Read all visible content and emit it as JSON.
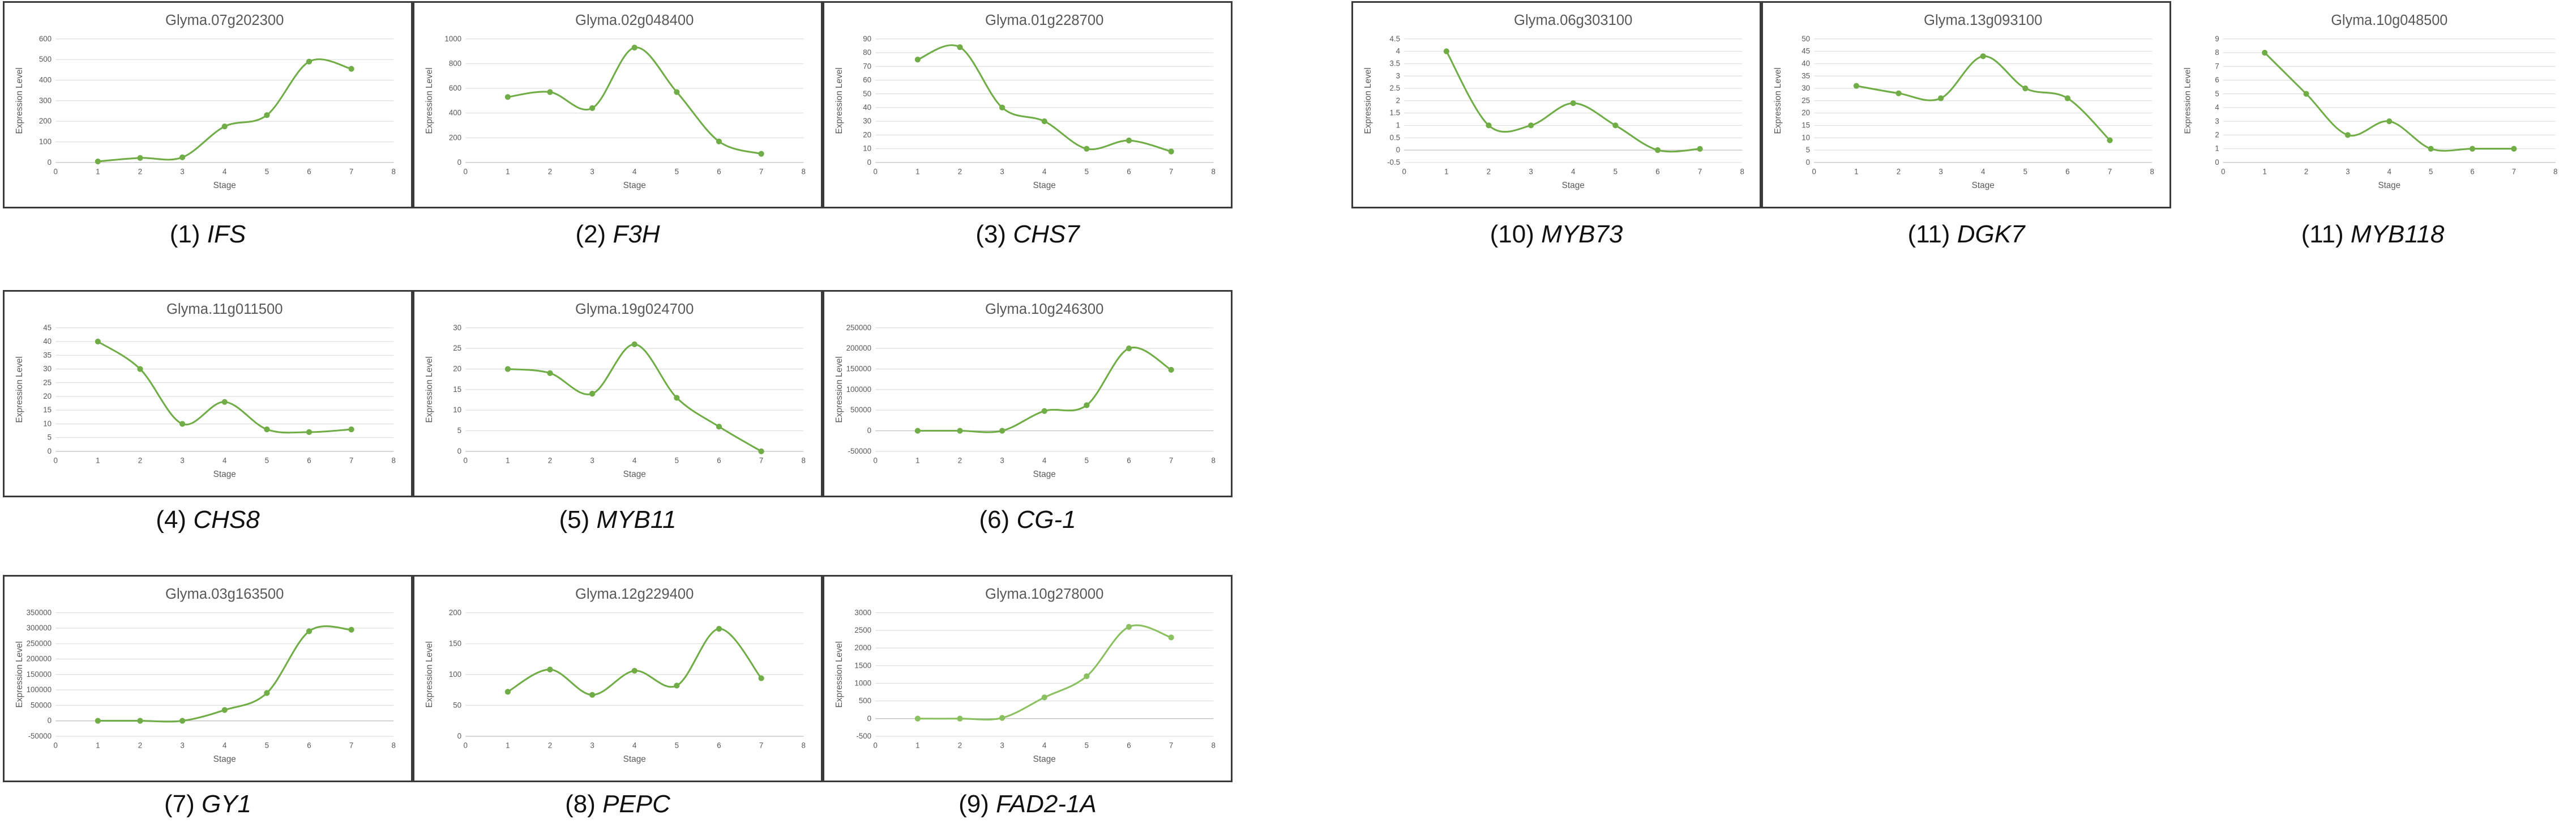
{
  "chart_data": [
    {
      "type": "line",
      "title": "Glyma.07g202300",
      "caption_num": "(1)",
      "caption_gene": "IFS",
      "xlabel": "Stage",
      "ylabel": "Expression Level",
      "xlim": [
        0,
        8
      ],
      "xticks": [
        0,
        1,
        2,
        3,
        4,
        5,
        6,
        7,
        8
      ],
      "ylim": [
        0,
        600
      ],
      "yticks": [
        0,
        100,
        200,
        300,
        400,
        500,
        600
      ],
      "series": [
        {
          "color": "#70ad47",
          "x": [
            1,
            2,
            3,
            4,
            5,
            6,
            7
          ],
          "y": [
            5,
            22,
            25,
            175,
            230,
            490,
            455
          ]
        }
      ]
    },
    {
      "type": "line",
      "title": "Glyma.02g048400",
      "caption_num": "(2)",
      "caption_gene": "F3H",
      "xlabel": "Stage",
      "ylabel": "Expression Level",
      "xlim": [
        0,
        8
      ],
      "xticks": [
        0,
        1,
        2,
        3,
        4,
        5,
        6,
        7,
        8
      ],
      "ylim": [
        0,
        1000
      ],
      "yticks": [
        0,
        200,
        400,
        600,
        800,
        1000
      ],
      "series": [
        {
          "color": "#70ad47",
          "x": [
            1,
            2,
            3,
            4,
            5,
            6,
            7
          ],
          "y": [
            530,
            570,
            440,
            930,
            570,
            170,
            70
          ]
        }
      ]
    },
    {
      "type": "line",
      "title": "Glyma.01g228700",
      "caption_num": "(3)",
      "caption_gene": "CHS7",
      "xlabel": "Stage",
      "ylabel": "Expression Level",
      "xlim": [
        0,
        8
      ],
      "xticks": [
        0,
        1,
        2,
        3,
        4,
        5,
        6,
        7,
        8
      ],
      "ylim": [
        0,
        90
      ],
      "yticks": [
        0,
        10,
        20,
        30,
        40,
        50,
        60,
        70,
        80,
        90
      ],
      "series": [
        {
          "color": "#70ad47",
          "x": [
            1,
            2,
            3,
            4,
            5,
            6,
            7
          ],
          "y": [
            75,
            84,
            40,
            30,
            10,
            16,
            8
          ]
        }
      ]
    },
    {
      "type": "line",
      "title": "Glyma.06g303100",
      "caption_num": "(10)",
      "caption_gene": "MYB73",
      "xlabel": "Stage",
      "ylabel": "Expression Level",
      "xlim": [
        0,
        8
      ],
      "xticks": [
        0,
        1,
        2,
        3,
        4,
        5,
        6,
        7,
        8
      ],
      "ylim": [
        -0.5,
        4.5
      ],
      "yticks": [
        -0.5,
        0,
        0.5,
        1,
        1.5,
        2,
        2.5,
        3,
        3.5,
        4,
        4.5
      ],
      "series": [
        {
          "color": "#70ad47",
          "x": [
            1,
            2,
            3,
            4,
            5,
            6,
            7
          ],
          "y": [
            4,
            1,
            1,
            1.9,
            1,
            0,
            0.05
          ]
        }
      ]
    },
    {
      "type": "line",
      "title": "Glyma.13g093100",
      "caption_num": "(11)",
      "caption_gene": "DGK7",
      "xlabel": "Stage",
      "ylabel": "Expression Level",
      "xlim": [
        0,
        8
      ],
      "xticks": [
        0,
        1,
        2,
        3,
        4,
        5,
        6,
        7,
        8
      ],
      "ylim": [
        0,
        50
      ],
      "yticks": [
        0,
        5,
        10,
        15,
        20,
        25,
        30,
        35,
        40,
        45,
        50
      ],
      "series": [
        {
          "color": "#70ad47",
          "x": [
            1,
            2,
            3,
            4,
            5,
            6,
            7
          ],
          "y": [
            31,
            28,
            26,
            43,
            30,
            26,
            9
          ]
        }
      ]
    },
    {
      "type": "line",
      "title": "Glyma.10g048500",
      "caption_num": "(11)",
      "caption_gene": "MYB118",
      "xlabel": "Stage",
      "ylabel": "Expression Level",
      "xlim": [
        0,
        8
      ],
      "xticks": [
        0,
        1,
        2,
        3,
        4,
        5,
        6,
        7,
        8
      ],
      "ylim": [
        0,
        9
      ],
      "yticks": [
        0,
        1,
        2,
        3,
        4,
        5,
        6,
        7,
        8,
        9
      ],
      "series": [
        {
          "color": "#70ad47",
          "x": [
            1,
            2,
            3,
            4,
            5,
            6,
            7
          ],
          "y": [
            8,
            5,
            2,
            3,
            1,
            1,
            1
          ]
        }
      ]
    },
    {
      "type": "line",
      "title": "Glyma.11g011500",
      "caption_num": "(4)",
      "caption_gene": "CHS8",
      "xlabel": "Stage",
      "ylabel": "Expression Level",
      "xlim": [
        0,
        8
      ],
      "xticks": [
        0,
        1,
        2,
        3,
        4,
        5,
        6,
        7,
        8
      ],
      "ylim": [
        0,
        45
      ],
      "yticks": [
        0,
        5,
        10,
        15,
        20,
        25,
        30,
        35,
        40,
        45
      ],
      "series": [
        {
          "color": "#70ad47",
          "x": [
            1,
            2,
            3,
            4,
            5,
            6,
            7
          ],
          "y": [
            40,
            30,
            10,
            18,
            8,
            7,
            8
          ]
        }
      ]
    },
    {
      "type": "line",
      "title": "Glyma.19g024700",
      "caption_num": "(5)",
      "caption_gene": "MYB11",
      "xlabel": "Stage",
      "ylabel": "Expression Level",
      "xlim": [
        0,
        8
      ],
      "xticks": [
        0,
        1,
        2,
        3,
        4,
        5,
        6,
        7,
        8
      ],
      "ylim": [
        0,
        30
      ],
      "yticks": [
        0,
        5,
        10,
        15,
        20,
        25,
        30
      ],
      "series": [
        {
          "color": "#70ad47",
          "x": [
            1,
            2,
            3,
            4,
            5,
            6,
            7
          ],
          "y": [
            20,
            19,
            14,
            26,
            13,
            6,
            0
          ]
        }
      ]
    },
    {
      "type": "line",
      "title": "Glyma.10g246300",
      "caption_num": "(6)",
      "caption_gene": "CG-1",
      "xlabel": "Stage",
      "ylabel": "Expression Level",
      "xlim": [
        0,
        8
      ],
      "xticks": [
        0,
        1,
        2,
        3,
        4,
        5,
        6,
        7,
        8
      ],
      "ylim": [
        -50000,
        250000
      ],
      "yticks": [
        -50000,
        0,
        50000,
        100000,
        150000,
        200000,
        250000
      ],
      "series": [
        {
          "color": "#70ad47",
          "x": [
            1,
            2,
            3,
            4,
            5,
            6,
            7
          ],
          "y": [
            0,
            0,
            0,
            48000,
            62000,
            200000,
            148000
          ]
        }
      ]
    },
    {
      "type": "line",
      "title": "Glyma.03g163500",
      "caption_num": "(7)",
      "caption_gene": "GY1",
      "xlabel": "Stage",
      "ylabel": "Expression Level",
      "xlim": [
        0,
        8
      ],
      "xticks": [
        0,
        1,
        2,
        3,
        4,
        5,
        6,
        7,
        8
      ],
      "ylim": [
        -50000,
        350000
      ],
      "yticks": [
        -50000,
        0,
        50000,
        100000,
        150000,
        200000,
        250000,
        300000,
        350000
      ],
      "series": [
        {
          "color": "#70ad47",
          "x": [
            1,
            2,
            3,
            4,
            5,
            6,
            7
          ],
          "y": [
            0,
            0,
            0,
            35000,
            90000,
            290000,
            295000
          ]
        }
      ]
    },
    {
      "type": "line",
      "title": "Glyma.12g229400",
      "caption_num": "(8)",
      "caption_gene": "PEPC",
      "xlabel": "Stage",
      "ylabel": "Expression Level",
      "xlim": [
        0,
        8
      ],
      "xticks": [
        0,
        1,
        2,
        3,
        4,
        5,
        6,
        7,
        8
      ],
      "ylim": [
        0,
        200
      ],
      "yticks": [
        0,
        50,
        100,
        150,
        200
      ],
      "series": [
        {
          "color": "#70ad47",
          "x": [
            1,
            2,
            3,
            4,
            5,
            6,
            7
          ],
          "y": [
            72,
            108,
            67,
            106,
            82,
            174,
            94
          ]
        }
      ]
    },
    {
      "type": "line",
      "title": "Glyma.10g278000",
      "caption_num": "(9)",
      "caption_gene": "FAD2-1A",
      "xlabel": "Stage",
      "ylabel": "Expression Level",
      "xlim": [
        0,
        8
      ],
      "xticks": [
        0,
        1,
        2,
        3,
        4,
        5,
        6,
        7,
        8
      ],
      "ylim": [
        -500,
        3000
      ],
      "yticks": [
        -500,
        0,
        500,
        1000,
        1500,
        2000,
        2500,
        3000
      ],
      "series": [
        {
          "color": "#8ac060",
          "x": [
            1,
            2,
            3,
            4,
            5,
            6,
            7
          ],
          "y": [
            0,
            0,
            20,
            600,
            1200,
            2600,
            2300
          ]
        }
      ]
    }
  ]
}
